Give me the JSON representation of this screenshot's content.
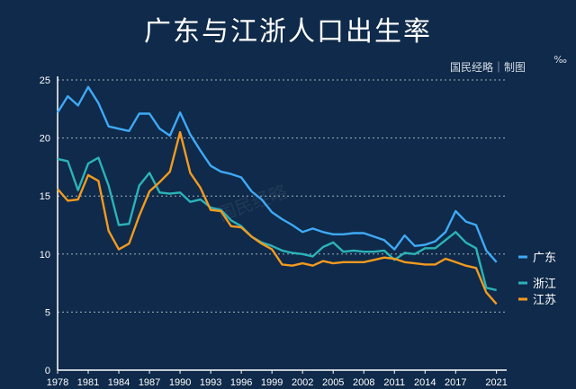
{
  "title": "广东与江浙人口出生率",
  "source": "国民经略｜制图",
  "unit": "‰",
  "watermark": "国民经略",
  "colors": {
    "background": "#0f2a4a",
    "gd": "#3fa9f5",
    "zj": "#2bb3b8",
    "js": "#f29a1f",
    "grid": "#c9d3dd"
  },
  "chart_data": {
    "type": "line",
    "title": "广东与江浙人口出生率",
    "ylabel": "‰",
    "ylim": [
      0,
      25
    ],
    "yticks": [
      0,
      5,
      10,
      15,
      20,
      25
    ],
    "xlim": [
      1978,
      2022
    ],
    "xticks": [
      1978,
      1981,
      1984,
      1987,
      1990,
      1993,
      1996,
      1999,
      2002,
      2005,
      2008,
      2011,
      2014,
      2017,
      2021
    ],
    "grid": true,
    "legend": "right",
    "x": [
      1978,
      1979,
      1980,
      1981,
      1982,
      1983,
      1984,
      1985,
      1986,
      1987,
      1988,
      1989,
      1990,
      1991,
      1992,
      1993,
      1994,
      1995,
      1996,
      1997,
      1998,
      1999,
      2000,
      2001,
      2002,
      2003,
      2004,
      2005,
      2006,
      2007,
      2008,
      2009,
      2010,
      2011,
      2012,
      2013,
      2014,
      2015,
      2016,
      2017,
      2018,
      2019,
      2020,
      2021
    ],
    "series": [
      {
        "name": "广东",
        "color": "#3fa9f5",
        "values": [
          22.2,
          23.6,
          22.8,
          24.4,
          23.0,
          21.0,
          20.8,
          20.6,
          22.1,
          22.1,
          20.8,
          20.2,
          22.2,
          20.3,
          18.9,
          17.6,
          17.1,
          16.9,
          16.6,
          15.4,
          14.7,
          13.6,
          13.0,
          12.5,
          11.9,
          12.2,
          11.9,
          11.7,
          11.7,
          11.8,
          11.8,
          11.5,
          11.2,
          10.4,
          11.6,
          10.7,
          10.8,
          11.1,
          11.9,
          13.7,
          12.8,
          12.5,
          10.3,
          9.3
        ]
      },
      {
        "name": "浙江",
        "color": "#2bb3b8",
        "values": [
          18.2,
          18.0,
          15.5,
          17.8,
          18.3,
          15.9,
          12.5,
          12.6,
          15.9,
          17.0,
          15.3,
          15.2,
          15.3,
          14.5,
          14.7,
          14.0,
          13.8,
          12.9,
          12.4,
          11.5,
          11.0,
          10.7,
          10.3,
          10.1,
          10.0,
          9.8,
          10.6,
          11.0,
          10.2,
          10.3,
          10.2,
          10.2,
          10.3,
          9.5,
          10.1,
          10.0,
          10.5,
          10.5,
          11.2,
          11.9,
          11.0,
          10.5,
          7.1,
          6.9
        ]
      },
      {
        "name": "江苏",
        "color": "#f29a1f",
        "values": [
          15.6,
          14.6,
          14.7,
          16.8,
          16.3,
          12.0,
          10.4,
          10.9,
          13.3,
          15.4,
          16.2,
          17.1,
          20.5,
          17.0,
          15.7,
          13.8,
          13.7,
          12.4,
          12.3,
          11.5,
          10.9,
          10.4,
          9.1,
          9.0,
          9.2,
          9.0,
          9.4,
          9.2,
          9.3,
          9.3,
          9.3,
          9.5,
          9.7,
          9.6,
          9.3,
          9.2,
          9.1,
          9.1,
          9.6,
          9.3,
          9.0,
          8.8,
          6.7,
          5.7
        ]
      }
    ]
  }
}
